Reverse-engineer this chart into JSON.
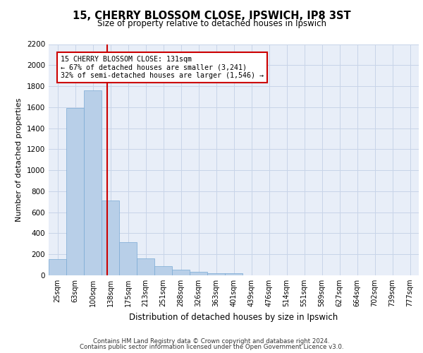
{
  "title_line1": "15, CHERRY BLOSSOM CLOSE, IPSWICH, IP8 3ST",
  "title_line2": "Size of property relative to detached houses in Ipswich",
  "xlabel": "Distribution of detached houses by size in Ipswich",
  "ylabel": "Number of detached properties",
  "footer_line1": "Contains HM Land Registry data © Crown copyright and database right 2024.",
  "footer_line2": "Contains public sector information licensed under the Open Government Licence v3.0.",
  "bin_labels": [
    "25sqm",
    "63sqm",
    "100sqm",
    "138sqm",
    "175sqm",
    "213sqm",
    "251sqm",
    "288sqm",
    "326sqm",
    "363sqm",
    "401sqm",
    "439sqm",
    "476sqm",
    "514sqm",
    "551sqm",
    "589sqm",
    "627sqm",
    "664sqm",
    "702sqm",
    "739sqm",
    "777sqm"
  ],
  "bar_values": [
    155,
    1590,
    1760,
    710,
    315,
    160,
    90,
    55,
    35,
    22,
    20,
    0,
    0,
    0,
    0,
    0,
    0,
    0,
    0,
    0,
    0
  ],
  "bar_color": "#b8cfe8",
  "bar_edge_color": "#7aaad4",
  "grid_color": "#c8d4e8",
  "bg_color": "#e8eef8",
  "vline_color": "#cc0000",
  "annotation_text": "15 CHERRY BLOSSOM CLOSE: 131sqm\n← 67% of detached houses are smaller (3,241)\n32% of semi-detached houses are larger (1,546) →",
  "annotation_box_color": "#cc0000",
  "ylim": [
    0,
    2200
  ],
  "yticks": [
    0,
    200,
    400,
    600,
    800,
    1000,
    1200,
    1400,
    1600,
    1800,
    2000,
    2200
  ]
}
